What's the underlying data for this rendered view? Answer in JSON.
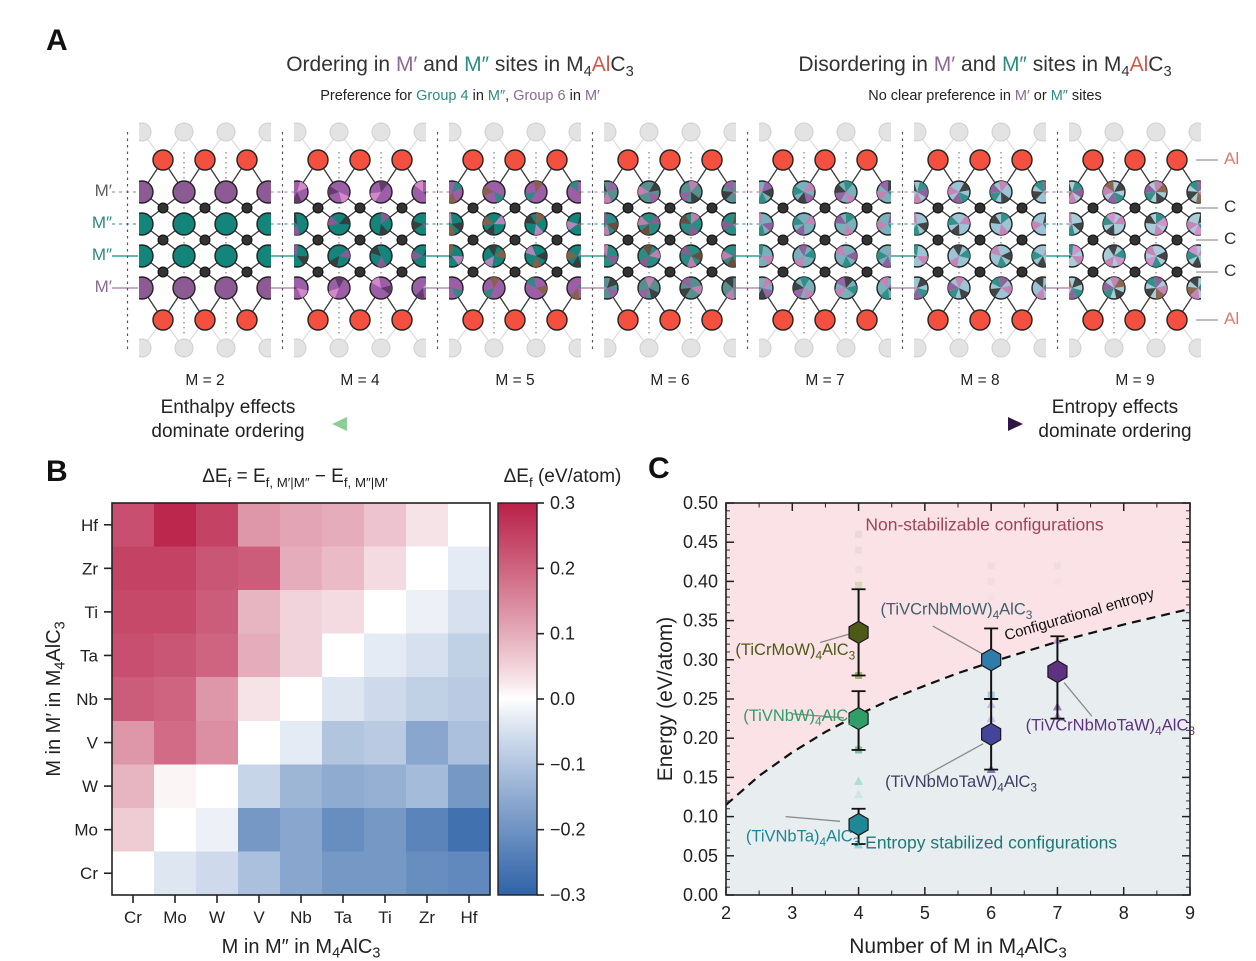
{
  "panels": {
    "a": "A",
    "b": "B",
    "c": "C"
  },
  "panel_a": {
    "left_title": [
      {
        "t": "Ordering in ",
        "c": "#333333"
      },
      {
        "t": "M′",
        "c": "#8a6a92"
      },
      {
        "t": " and ",
        "c": "#333333"
      },
      {
        "t": "M″",
        "c": "#2a8c82"
      },
      {
        "t": " sites in ",
        "c": "#333333"
      },
      {
        "t": "M_4",
        "c": "#333333"
      },
      {
        "t": "Al",
        "c": "#d95448"
      },
      {
        "t": "C_3",
        "c": "#333333"
      }
    ],
    "left_subtitle": [
      {
        "t": "Preference for ",
        "c": "#222222"
      },
      {
        "t": "Group 4",
        "c": "#2a8c82"
      },
      {
        "t": " in ",
        "c": "#222222"
      },
      {
        "t": "M″",
        "c": "#2a8c82"
      },
      {
        "t": ", ",
        "c": "#222222"
      },
      {
        "t": "Group 6",
        "c": "#8a6a92"
      },
      {
        "t": " in ",
        "c": "#222222"
      },
      {
        "t": "M′",
        "c": "#8a6a92"
      }
    ],
    "right_title": [
      {
        "t": "Disordering in ",
        "c": "#333333"
      },
      {
        "t": "M′",
        "c": "#8a6a92"
      },
      {
        "t": " and ",
        "c": "#333333"
      },
      {
        "t": "M″",
        "c": "#2a8c82"
      },
      {
        "t": " sites in ",
        "c": "#333333"
      },
      {
        "t": "M_4",
        "c": "#333333"
      },
      {
        "t": "Al",
        "c": "#d95448"
      },
      {
        "t": "C_3",
        "c": "#333333"
      }
    ],
    "right_subtitle": [
      {
        "t": "No clear preference in ",
        "c": "#222222"
      },
      {
        "t": "M′",
        "c": "#8a6a92"
      },
      {
        "t": " or ",
        "c": "#222222"
      },
      {
        "t": "M″",
        "c": "#2a8c82"
      },
      {
        "t": " sites",
        "c": "#222222"
      }
    ],
    "site_labels_left": [
      {
        "t": "M′",
        "c": "#5f5f5f"
      },
      {
        "t": "M″",
        "c": "#2a8c82"
      },
      {
        "t": "M″",
        "c": "#2a8c82"
      },
      {
        "t": "M′",
        "c": "#8a6a92"
      }
    ],
    "site_labels_right": [
      {
        "t": "Al",
        "c": "#e0796d"
      },
      {
        "t": "C",
        "c": "#333333"
      },
      {
        "t": "C",
        "c": "#333333"
      },
      {
        "t": "C",
        "c": "#333333"
      },
      {
        "t": "Al",
        "c": "#e0796d"
      }
    ],
    "m_labels": [
      "M = 2",
      "M = 4",
      "M = 5",
      "M = 6",
      "M = 7",
      "M = 8",
      "M = 9"
    ],
    "arrow_left_caption": [
      "Enthalpy effects",
      "dominate ordering"
    ],
    "arrow_right_caption": [
      "Entropy effects",
      "dominate ordering"
    ],
    "caption_colors": {
      "left": "#47734a",
      "right": "#6b2d7b"
    },
    "arrow_colors": {
      "left": "#8bcf96",
      "mid": "#3e8f7a",
      "right": "#2e1742"
    },
    "atom_colors": {
      "al": "#f3503f",
      "c": "#333333",
      "ghost": "#e3e3e3"
    },
    "structures": [
      {
        "label": "M = 2",
        "mprime": [
          "#8e5a96"
        ],
        "mdouble": [
          "#13857a"
        ]
      },
      {
        "label": "M = 4",
        "mprime": [
          "#9c5ea6",
          "#d98ccc",
          "#5e3a66"
        ],
        "mdouble": [
          "#13857a",
          "#8e5a96",
          "#3a3a3a"
        ]
      },
      {
        "label": "M = 5",
        "mprime": [
          "#9c5ea6",
          "#2a8c82",
          "#8a6048"
        ],
        "mdouble": [
          "#13857a",
          "#8a6048",
          "#c285c2",
          "#3a3a3a"
        ]
      },
      {
        "label": "M = 6",
        "mprime": [
          "#58908f",
          "#9c5ea6",
          "#c97fb4",
          "#3a3a3a"
        ],
        "mdouble": [
          "#2a8c82",
          "#c97fb4",
          "#8e5a96",
          "#6b4a38"
        ]
      },
      {
        "label": "M = 7",
        "mprime": [
          "#7ab0bc",
          "#9c5ea6",
          "#2a8c82",
          "#c97fb4",
          "#3a3a3a"
        ],
        "mdouble": [
          "#7ab0bc",
          "#2a8c82",
          "#c97fb4",
          "#8e5a96"
        ]
      },
      {
        "label": "M = 8",
        "mprime": [
          "#9cc4d4",
          "#2a8c82",
          "#c97fb4",
          "#3a3a3a",
          "#8e5a96"
        ],
        "mdouble": [
          "#9cc4d4",
          "#2a8c82",
          "#c97fb4",
          "#3a3a3a"
        ]
      },
      {
        "label": "M = 9",
        "mprime": [
          "#a8cdd9",
          "#2a8c82",
          "#c97fb4",
          "#3a3a3a",
          "#8e5a96",
          "#8a6048"
        ],
        "mdouble": [
          "#a8cdd9",
          "#2a8c82",
          "#c97fb4",
          "#3a3a3a",
          "#d98ccc"
        ]
      }
    ]
  },
  "chart_data": [
    {
      "type": "heatmap",
      "title": "ΔE_f = E_{f, M′|M″} − E_{f, M″|M′}",
      "colorbar_label": "ΔE_f (eV/atom)",
      "ylabel": "M in M′ in M_4AlC_3",
      "xlabel": "M in M″ in M_4AlC_3",
      "rows": [
        "Hf",
        "Zr",
        "Ti",
        "Ta",
        "Nb",
        "V",
        "W",
        "Mo",
        "Cr"
      ],
      "cols": [
        "Cr",
        "Mo",
        "W",
        "V",
        "Nb",
        "Ta",
        "Ti",
        "Zr",
        "Hf"
      ],
      "values": [
        [
          0.23,
          0.29,
          0.25,
          0.13,
          0.11,
          0.1,
          0.07,
          0.03,
          0.0
        ],
        [
          0.25,
          0.25,
          0.22,
          0.21,
          0.1,
          0.08,
          0.04,
          0.0,
          -0.03
        ],
        [
          0.24,
          0.24,
          0.21,
          0.09,
          0.05,
          0.04,
          0.0,
          -0.02,
          -0.05
        ],
        [
          0.23,
          0.22,
          0.2,
          0.1,
          0.05,
          0.0,
          -0.03,
          -0.05,
          -0.08
        ],
        [
          0.21,
          0.2,
          0.13,
          0.03,
          0.0,
          -0.04,
          -0.06,
          -0.08,
          -0.09
        ],
        [
          0.13,
          0.19,
          0.14,
          0.0,
          -0.03,
          -0.1,
          -0.09,
          -0.16,
          -0.11
        ],
        [
          0.09,
          0.01,
          0.0,
          -0.07,
          -0.13,
          -0.15,
          -0.14,
          -0.12,
          -0.19
        ],
        [
          0.06,
          0.0,
          -0.02,
          -0.19,
          -0.16,
          -0.21,
          -0.19,
          -0.23,
          -0.27
        ],
        [
          0.0,
          -0.04,
          -0.06,
          -0.11,
          -0.16,
          -0.19,
          -0.19,
          -0.21,
          -0.22
        ]
      ],
      "scale_min": -0.3,
      "scale_max": 0.3,
      "colorbar_ticks": [
        0.3,
        0.2,
        0.1,
        0.0,
        -0.1,
        -0.2,
        -0.3
      ],
      "pos_color": "#b92048",
      "neg_color": "#2f63a8"
    },
    {
      "type": "scatter",
      "xlabel": "Number of M in M_4AlC_3",
      "ylabel": "Energy (eV/atom)",
      "xlim": [
        2,
        9
      ],
      "ylim": [
        0,
        0.5
      ],
      "x_ticks": [
        2,
        3,
        4,
        5,
        6,
        7,
        8,
        9
      ],
      "y_ticks": [
        "0.00",
        "0.05",
        "0.10",
        "0.15",
        "0.20",
        "0.25",
        "0.30",
        "0.35",
        "0.40",
        "0.45",
        "0.50"
      ],
      "regions": {
        "above_label": "Non-stabilizable configurations",
        "above_text_color": "#a04458",
        "above_fill": "#fae2e6",
        "below_label": "Entropy stabilized configurations",
        "below_text_color": "#1b7a78",
        "below_fill": "#e8eef0",
        "above_label_pos": [
          5.9,
          0.465
        ],
        "below_label_pos": [
          6.0,
          0.059
        ]
      },
      "entropy_curve": {
        "label": "Configurational entropy",
        "label_pos": [
          7.35,
          0.352
        ],
        "label_angle": -16,
        "points": [
          [
            2,
            0.115
          ],
          [
            2.5,
            0.152
          ],
          [
            3,
            0.182
          ],
          [
            3.5,
            0.208
          ],
          [
            4,
            0.23
          ],
          [
            4.5,
            0.25
          ],
          [
            5,
            0.267
          ],
          [
            5.5,
            0.283
          ],
          [
            6,
            0.297
          ],
          [
            6.5,
            0.31
          ],
          [
            7,
            0.323
          ],
          [
            7.5,
            0.334
          ],
          [
            8,
            0.345
          ],
          [
            8.5,
            0.355
          ],
          [
            9,
            0.365
          ]
        ]
      },
      "points": [
        {
          "x": 4,
          "y": 0.335,
          "ylo": 0.28,
          "yhi": 0.39,
          "color": "#4d5a17",
          "label": "(TiCrMoW)_4AlC_3",
          "label_color": "#4d5a17",
          "label_anchor": "end",
          "label_pos": [
            3.95,
            0.306
          ],
          "leader": [
            [
              3.42,
              0.322
            ],
            [
              3.87,
              0.333
            ]
          ]
        },
        {
          "x": 4,
          "y": 0.225,
          "ylo": 0.185,
          "yhi": 0.26,
          "color": "#2f9e68",
          "label": "(TiVNbW)_4AlC_3",
          "label_color": "#2f9e68",
          "label_anchor": "start",
          "label_pos": [
            2.26,
            0.222
          ],
          "leader": [
            [
              3.0,
              0.231
            ],
            [
              3.78,
              0.226
            ]
          ]
        },
        {
          "x": 4,
          "y": 0.09,
          "ylo": 0.065,
          "yhi": 0.11,
          "color": "#1f8795",
          "label": "(TiVNbTa)_4AlC_3",
          "label_color": "#1f8795",
          "label_anchor": "start",
          "label_pos": [
            2.3,
            0.068
          ],
          "leader": [
            [
              2.9,
              0.1
            ],
            [
              3.72,
              0.094
            ]
          ]
        },
        {
          "x": 6,
          "y": 0.3,
          "ylo": 0.25,
          "yhi": 0.34,
          "color": "#2f7cab",
          "label": "(TiVCrNbMoW)_4AlC_3",
          "label_color": "#40606b",
          "label_anchor": "start",
          "label_pos": [
            4.33,
            0.358
          ],
          "leader": [
            [
              5.12,
              0.343
            ],
            [
              5.88,
              0.307
            ]
          ]
        },
        {
          "x": 6,
          "y": 0.205,
          "ylo": 0.16,
          "yhi": 0.25,
          "color": "#45449b",
          "label": "(TiVNbMoTaW)_4AlC_3",
          "label_color": "#3f3e63",
          "label_anchor": "start",
          "label_pos": [
            4.4,
            0.138
          ],
          "leader": [
            [
              5.0,
              0.152
            ],
            [
              5.88,
              0.193
            ]
          ]
        },
        {
          "x": 7,
          "y": 0.285,
          "ylo": 0.225,
          "yhi": 0.33,
          "color": "#5e3181",
          "label": "(TiVCrNbMoTaW)_4AlC_3",
          "label_color": "#5e3181",
          "label_anchor": "start",
          "label_pos": [
            6.52,
            0.21
          ],
          "leader": [
            [
              7.1,
              0.271
            ],
            [
              7.52,
              0.228
            ]
          ]
        }
      ],
      "ghosts": [
        {
          "x": 4,
          "y": 0.46,
          "shape": "sq",
          "color": "#bbbbbb",
          "op": 0.25
        },
        {
          "x": 4,
          "y": 0.44,
          "shape": "sq",
          "color": "#bbbbbb",
          "op": 0.2
        },
        {
          "x": 4,
          "y": 0.415,
          "shape": "sq",
          "color": "#cccccc",
          "op": 0.2
        },
        {
          "x": 4,
          "y": 0.395,
          "shape": "sq",
          "color": "#b5c98a",
          "op": 0.5
        },
        {
          "x": 4,
          "y": 0.28,
          "shape": "sq",
          "color": "#7aa23a",
          "op": 0.7
        },
        {
          "x": 4,
          "y": 0.185,
          "shape": "sq",
          "color": "#35a06d",
          "op": 0.6
        },
        {
          "x": 4,
          "y": 0.145,
          "shape": "tri",
          "color": "#9fd8cf",
          "op": 0.8
        },
        {
          "x": 4,
          "y": 0.128,
          "shape": "tri",
          "color": "#bfe4de",
          "op": 0.7
        },
        {
          "x": 4,
          "y": 0.064,
          "shape": "tri",
          "color": "#8ed0d8",
          "op": 0.9
        },
        {
          "x": 6,
          "y": 0.42,
          "shape": "sq",
          "color": "#cccccc",
          "op": 0.2
        },
        {
          "x": 6,
          "y": 0.4,
          "shape": "sq",
          "color": "#cccccc",
          "op": 0.18
        },
        {
          "x": 6,
          "y": 0.38,
          "shape": "sq",
          "color": "#dddddd",
          "op": 0.18
        },
        {
          "x": 6,
          "y": 0.255,
          "shape": "sq",
          "color": "#7fb3d0",
          "op": 0.6
        },
        {
          "x": 6,
          "y": 0.243,
          "shape": "tri",
          "color": "#9f8fd0",
          "op": 0.5
        },
        {
          "x": 6,
          "y": 0.225,
          "shape": "tri",
          "color": "#b49fd8",
          "op": 0.6
        },
        {
          "x": 6,
          "y": 0.21,
          "shape": "sq",
          "color": "#8f7fc0",
          "op": 0.5
        },
        {
          "x": 6,
          "y": 0.16,
          "shape": "tri",
          "color": "#6a5ab0",
          "op": 0.8
        },
        {
          "x": 7,
          "y": 0.42,
          "shape": "sq",
          "color": "#cccccc",
          "op": 0.2
        },
        {
          "x": 7,
          "y": 0.4,
          "shape": "sq",
          "color": "#dddddd",
          "op": 0.18
        },
        {
          "x": 7,
          "y": 0.325,
          "shape": "tri",
          "color": "#9a6fc0",
          "op": 0.6
        },
        {
          "x": 7,
          "y": 0.24,
          "shape": "tri",
          "color": "#8a5fb0",
          "op": 0.8
        },
        {
          "x": 7,
          "y": 0.228,
          "shape": "tri",
          "color": "#9a6fc0",
          "op": 0.6
        }
      ]
    }
  ]
}
